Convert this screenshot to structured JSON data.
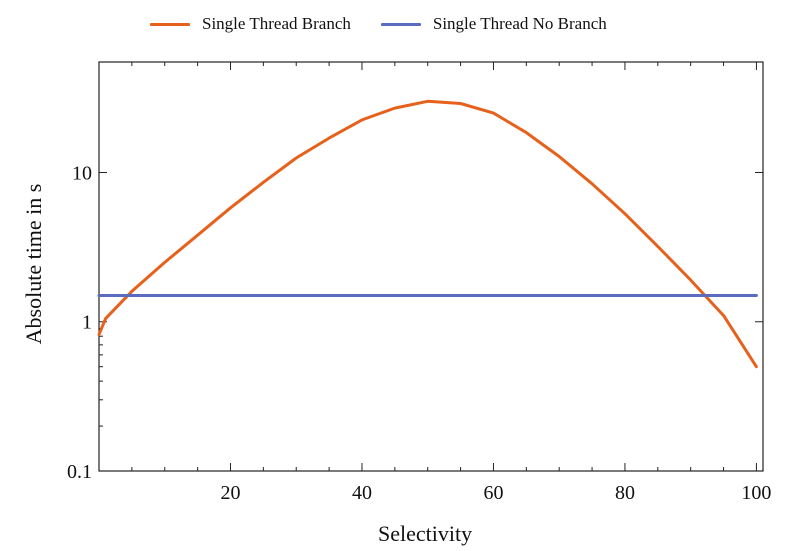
{
  "chart_data": {
    "type": "line",
    "title": "",
    "xlabel": "Selectivity",
    "ylabel": "Absolute time in s",
    "x_ticks": [
      20,
      40,
      60,
      80,
      100
    ],
    "y_ticks": [
      0.1,
      1,
      10
    ],
    "xlim": [
      0,
      101
    ],
    "ylim": [
      0.1,
      55
    ],
    "yscale": "log",
    "legend_position": "top",
    "grid": false,
    "x": [
      0,
      1,
      5,
      10,
      15,
      20,
      25,
      30,
      35,
      40,
      45,
      50,
      55,
      60,
      65,
      70,
      75,
      80,
      85,
      90,
      95,
      100
    ],
    "series": [
      {
        "name": "Single Thread Branch",
        "color": "#e5611c",
        "values": [
          0.82,
          1.05,
          1.6,
          2.5,
          3.8,
          5.8,
          8.6,
          12.5,
          17.0,
          22.5,
          27.0,
          30.0,
          29.0,
          25.0,
          18.5,
          12.8,
          8.4,
          5.3,
          3.2,
          1.9,
          1.1,
          0.5
        ]
      },
      {
        "name": "Single Thread No Branch",
        "color": "#5b6cc0",
        "values": [
          1.5,
          1.5,
          1.5,
          1.5,
          1.5,
          1.5,
          1.5,
          1.5,
          1.5,
          1.5,
          1.5,
          1.5,
          1.5,
          1.5,
          1.5,
          1.5,
          1.5,
          1.5,
          1.5,
          1.5,
          1.5,
          1.5
        ]
      }
    ]
  }
}
